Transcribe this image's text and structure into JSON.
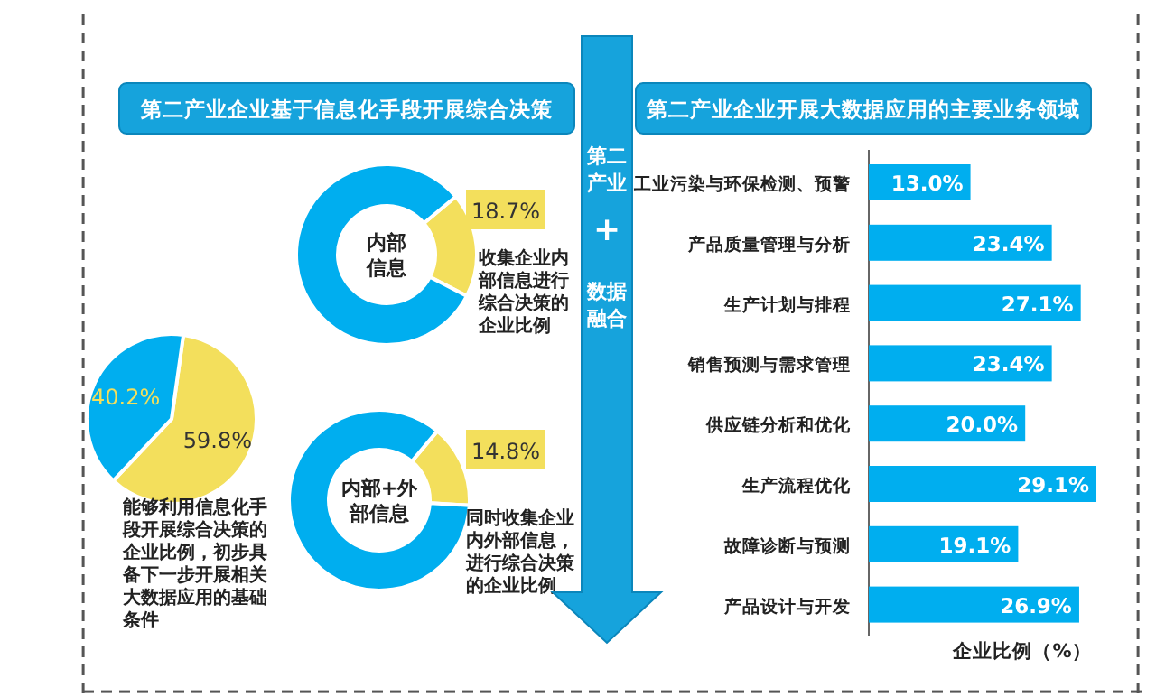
{
  "chart_data": [
    {
      "type": "pie",
      "categories": [
        null,
        null
      ],
      "values": [
        59.8,
        40.2
      ],
      "colors": [
        "#f3df5c",
        "#00aeef"
      ],
      "value_labels": [
        "59.8%",
        "40.2%"
      ],
      "annotations": [
        "能够利用信息化手段开展综合决策的企业比例，初步具备下一步开展相关大数据应用的基础条件"
      ]
    },
    {
      "type": "donut",
      "title": "第二产业企业基于信息化手段开展综合决策",
      "categories": [
        null,
        null
      ],
      "values": [
        18.7,
        81.3
      ],
      "colors": [
        "#f3df5c",
        "#00aeef"
      ],
      "value_labels": [
        "18.7%",
        null
      ],
      "annotations": [
        "内部信息",
        "收集企业内部信息进行综合决策的企业比例"
      ]
    },
    {
      "type": "donut",
      "categories": [
        null,
        null
      ],
      "values": [
        14.8,
        85.2
      ],
      "colors": [
        "#f3df5c",
        "#00aeef"
      ],
      "value_labels": [
        "14.8%",
        null
      ],
      "annotations": [
        "内部+外部信息",
        "同时收集企业内外部信息，进行综合决策的企业比例"
      ]
    },
    {
      "type": "other",
      "annotations": [
        "第二产业",
        "+",
        "数据融合"
      ]
    },
    {
      "type": "bar",
      "orientation": "horizontal",
      "title": "第二产业企业开展大数据应用的主要业务领域",
      "xlabel": "企业比例（%）",
      "categories": [
        "工业污染与环保检测、预警",
        "产品质量管理与分析",
        "生产计划与排程",
        "销售预测与需求管理",
        "供应链分析和优化",
        "生产流程优化",
        "故障诊断与预测",
        "产品设计与开发"
      ],
      "values": [
        13.0,
        23.4,
        27.1,
        23.4,
        20.0,
        29.1,
        19.1,
        26.9
      ],
      "color": "#00aeef",
      "value_labels": [
        "13.0%",
        "23.4%",
        "27.1%",
        "23.4%",
        "20.0%",
        "29.1%",
        "19.1%",
        "26.9%"
      ]
    }
  ]
}
